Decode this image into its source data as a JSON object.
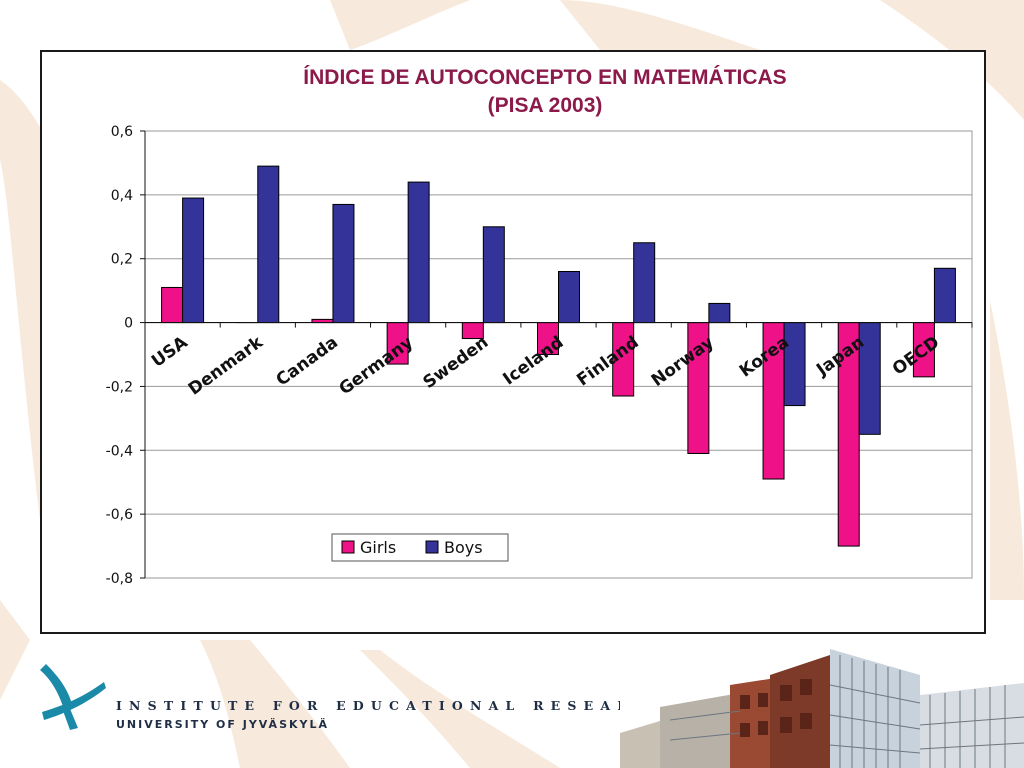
{
  "slide": {
    "institute_name": "INSTITUTE FOR EDUCATIONAL RESEARCH",
    "university_name": "UNIVERSITY OF JYVÄSKYLÄ"
  },
  "chart_data": {
    "type": "bar",
    "title": "ÍNDICE DE AUTOCONCEPTO EN MATEMÁTICAS",
    "subtitle": "(PISA 2003)",
    "xlabel": "",
    "ylabel": "",
    "categories": [
      "USA",
      "Denmark",
      "Canada",
      "Germany",
      "Sweden",
      "Iceland",
      "Finland",
      "Norway",
      "Korea",
      "Japan",
      "OECD"
    ],
    "series": [
      {
        "name": "Girls",
        "color": "#ee1188",
        "values": [
          0.11,
          0.0,
          0.01,
          -0.13,
          -0.05,
          -0.1,
          -0.23,
          -0.41,
          -0.49,
          -0.7,
          -0.17
        ]
      },
      {
        "name": "Boys",
        "color": "#333399",
        "values": [
          0.39,
          0.49,
          0.37,
          0.44,
          0.3,
          0.16,
          0.25,
          0.06,
          -0.26,
          -0.35,
          0.17
        ]
      }
    ],
    "ylim": [
      -0.8,
      0.6
    ],
    "yticks": [
      0.6,
      0.4,
      0.2,
      0,
      -0.2,
      -0.4,
      -0.6,
      -0.8
    ],
    "ytick_labels": [
      "0,6",
      "0,4",
      "0,2",
      "0",
      "-0,2",
      "-0,4",
      "-0,6",
      "-0,8"
    ],
    "grid": true,
    "legend_position": "bottom-left"
  }
}
